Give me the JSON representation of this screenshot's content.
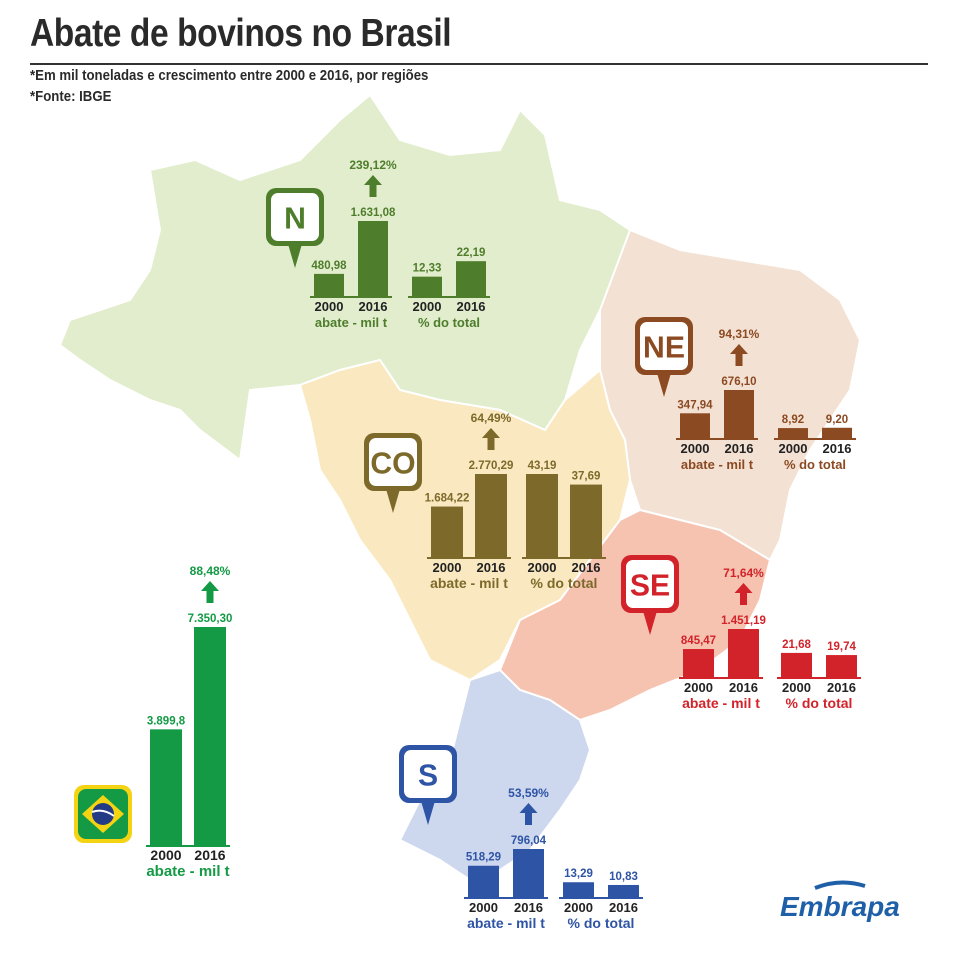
{
  "header": {
    "title": "Abate de bovinos no Brasil",
    "note_units": "*Em mil toneladas e crescimento entre 2000 e 2016, por regiões",
    "note_source": "*Fonte: IBGE"
  },
  "logo": {
    "text": "Embrapa",
    "color": "#1f5fa8"
  },
  "chart_data": [
    {
      "type": "bar",
      "region": "N",
      "color": "#4e7d2c",
      "map_color": "#e1edcc",
      "abate": {
        "categories": [
          "2000",
          "2016"
        ],
        "values": [
          480.98,
          1631.08
        ],
        "value_labels": [
          "480,98",
          "1.631,08"
        ],
        "growth": "239,12%",
        "label": "abate - mil t"
      },
      "share": {
        "categories": [
          "2000",
          "2016"
        ],
        "values": [
          12.33,
          22.19
        ],
        "value_labels": [
          "12,33",
          "22,19"
        ],
        "label": "% do total"
      }
    },
    {
      "type": "bar",
      "region": "NE",
      "color": "#8b4a22",
      "map_color": "#f3e1d3",
      "abate": {
        "categories": [
          "2000",
          "2016"
        ],
        "values": [
          347.94,
          676.1
        ],
        "value_labels": [
          "347,94",
          "676,10"
        ],
        "growth": "94,31%",
        "label": "abate - mil t"
      },
      "share": {
        "categories": [
          "2000",
          "2016"
        ],
        "values": [
          8.92,
          9.2
        ],
        "value_labels": [
          "8,92",
          "9,20"
        ],
        "label": "% do total"
      }
    },
    {
      "type": "bar",
      "region": "CO",
      "color": "#7d6a2a",
      "map_color": "#fae8c0",
      "abate": {
        "categories": [
          "2000",
          "2016"
        ],
        "values": [
          1684.22,
          2770.29
        ],
        "value_labels": [
          "1.684,22",
          "2.770,29"
        ],
        "growth": "64,49%",
        "label": "abate - mil t"
      },
      "share": {
        "categories": [
          "2000",
          "2016"
        ],
        "values": [
          43.19,
          37.69
        ],
        "value_labels": [
          "43,19",
          "37,69"
        ],
        "label": "% do total"
      }
    },
    {
      "type": "bar",
      "region": "SE",
      "color": "#d2232a",
      "map_color": "#f6c3b1",
      "abate": {
        "categories": [
          "2000",
          "2016"
        ],
        "values": [
          845.47,
          1451.19
        ],
        "value_labels": [
          "845,47",
          "1.451,19"
        ],
        "growth": "71,64%",
        "label": "abate - mil t"
      },
      "share": {
        "categories": [
          "2000",
          "2016"
        ],
        "values": [
          21.68,
          19.74
        ],
        "value_labels": [
          "21,68",
          "19,74"
        ],
        "label": "% do total"
      }
    },
    {
      "type": "bar",
      "region": "S",
      "color": "#2e54a5",
      "map_color": "#cdd8ee",
      "abate": {
        "categories": [
          "2000",
          "2016"
        ],
        "values": [
          518.29,
          796.04
        ],
        "value_labels": [
          "518,29",
          "796,04"
        ],
        "growth": "53,59%",
        "label": "abate - mil t"
      },
      "share": {
        "categories": [
          "2000",
          "2016"
        ],
        "values": [
          13.29,
          10.83
        ],
        "value_labels": [
          "13,29",
          "10,83"
        ],
        "label": "% do total"
      }
    },
    {
      "type": "bar",
      "region": "Brasil",
      "color": "#149a45",
      "abate": {
        "categories": [
          "2000",
          "2016"
        ],
        "values": [
          3899.8,
          7350.3
        ],
        "value_labels": [
          "3.899,8",
          "7.350,30"
        ],
        "growth": "88,48%",
        "label": "abate - mil t"
      }
    }
  ]
}
